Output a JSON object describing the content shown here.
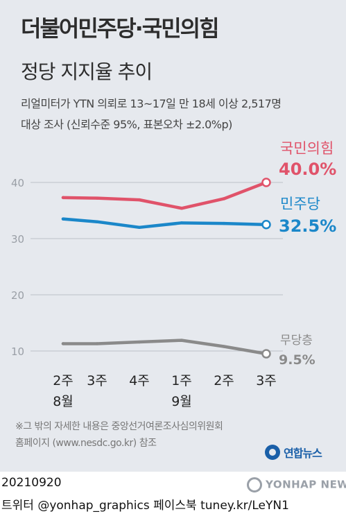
{
  "title": "더불어민주당·국민의힘",
  "subtitle": "정당 지지율 추이",
  "source_line1": "리얼미터가 YTN 의뢰로 13~17일 만 18세 이상 2,517명",
  "source_line2": "대상 조사 (신뢰수준 95%, 표본오차 ±2.0%p)",
  "note_line1": "※그 밖의 자세한 내용은 중앙선거여론조사심의위원회",
  "note_line2": "홈페이지 (www.nesdc.go.kr) 참조",
  "logo_text": "연합뉴스",
  "footer_date": "20210920",
  "footer_social": "트위터 @yonhap_graphics  페이스북 tuney.kr/LeYN1",
  "watermark": "YONHAP NEWS",
  "colors": {
    "ppp": "#e0536a",
    "dp": "#1b87c9",
    "none": "#8a8a8a",
    "background": "#e6e9ee"
  },
  "chart_data": {
    "type": "line",
    "categories": [
      "2주",
      "3주",
      "4주",
      "1주",
      "2주",
      "3주"
    ],
    "month_labels": [
      {
        "label": "8월",
        "at_index": 0
      },
      {
        "label": "9월",
        "at_index": 3
      }
    ],
    "ylim": [
      0,
      45
    ],
    "yticks": [
      10,
      20,
      30,
      40
    ],
    "grid": true,
    "series": [
      {
        "name": "국민의힘",
        "values": [
          37.3,
          37.2,
          36.9,
          35.4,
          37.1,
          40.0
        ],
        "end_label": "40.0%",
        "color": "#e0536a"
      },
      {
        "name": "민주당",
        "values": [
          33.5,
          33.0,
          32.0,
          32.8,
          32.7,
          32.5
        ],
        "end_label": "32.5%",
        "color": "#1b87c9"
      },
      {
        "name": "무당층",
        "values": [
          11.3,
          11.3,
          11.6,
          11.9,
          10.8,
          9.5
        ],
        "end_label": "9.5%",
        "color": "#8a8a8a"
      }
    ]
  }
}
